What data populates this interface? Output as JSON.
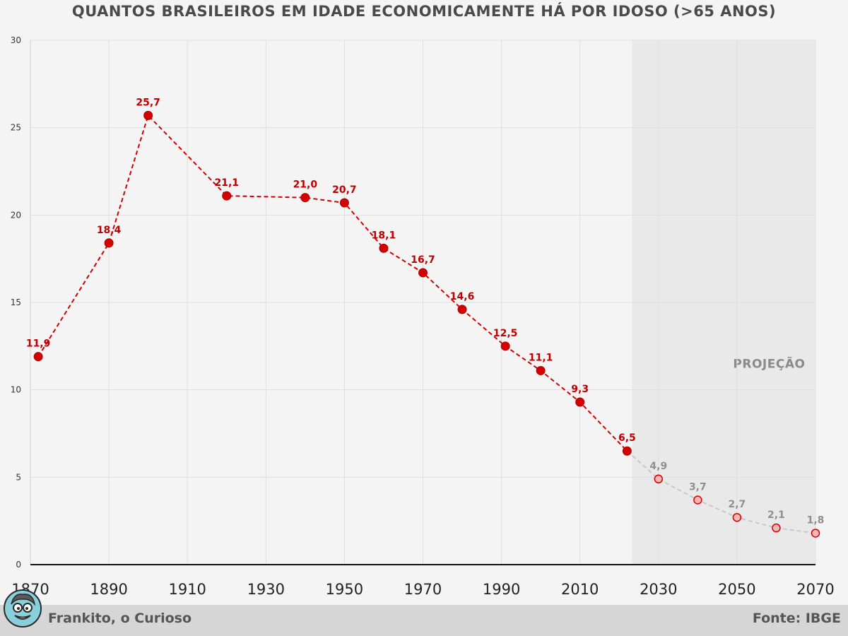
{
  "chart_data": {
    "type": "line",
    "title": "QUANTOS BRASILEIROS EM IDADE ECONOMICAMENTE HÁ POR IDOSO (>65 ANOS)",
    "xlabel": "",
    "ylabel": "",
    "xlim": [
      1870,
      2070
    ],
    "ylim": [
      0,
      30
    ],
    "x_ticks": [
      "1870",
      "1890",
      "1910",
      "1930",
      "1950",
      "1970",
      "1990",
      "2010",
      "2030",
      "2050",
      "2070"
    ],
    "y_ticks": [
      "0",
      "5",
      "10",
      "15",
      "20",
      "25",
      "30"
    ],
    "grid": true,
    "series": [
      {
        "kind": "actual",
        "color": "#d40000",
        "points": [
          {
            "x": 1872,
            "y": 11.9,
            "label": "11,9"
          },
          {
            "x": 1890,
            "y": 18.4,
            "label": "18,4"
          },
          {
            "x": 1900,
            "y": 25.7,
            "label": "25,7"
          },
          {
            "x": 1920,
            "y": 21.1,
            "label": "21,1"
          },
          {
            "x": 1940,
            "y": 21.0,
            "label": "21,0"
          },
          {
            "x": 1950,
            "y": 20.7,
            "label": "20,7"
          },
          {
            "x": 1960,
            "y": 18.1,
            "label": "18,1"
          },
          {
            "x": 1970,
            "y": 16.7,
            "label": "16,7"
          },
          {
            "x": 1980,
            "y": 14.6,
            "label": "14,6"
          },
          {
            "x": 1991,
            "y": 12.5,
            "label": "12,5"
          },
          {
            "x": 2000,
            "y": 11.1,
            "label": "11,1"
          },
          {
            "x": 2010,
            "y": 9.3,
            "label": "9,3"
          },
          {
            "x": 2022,
            "y": 6.5,
            "label": "6,5"
          }
        ]
      },
      {
        "kind": "projection",
        "color": "#c8c8c8",
        "marker_color": "#f4b6b6",
        "points": [
          {
            "x": 2030,
            "y": 4.9,
            "label": "4,9"
          },
          {
            "x": 2040,
            "y": 3.7,
            "label": "3,7"
          },
          {
            "x": 2050,
            "y": 2.7,
            "label": "2,7"
          },
          {
            "x": 2060,
            "y": 2.1,
            "label": "2,1"
          },
          {
            "x": 2070,
            "y": 1.8,
            "label": "1,8"
          }
        ]
      }
    ],
    "projection_region": {
      "x_start": 2023.3,
      "x_end": 2070,
      "label": "PROJEÇÃO",
      "color": "#e9e9e9"
    }
  },
  "footer": {
    "author": "Frankito, o Curioso",
    "source": "Fonte: IBGE",
    "avatar_icon": "cartoon-face-icon"
  }
}
